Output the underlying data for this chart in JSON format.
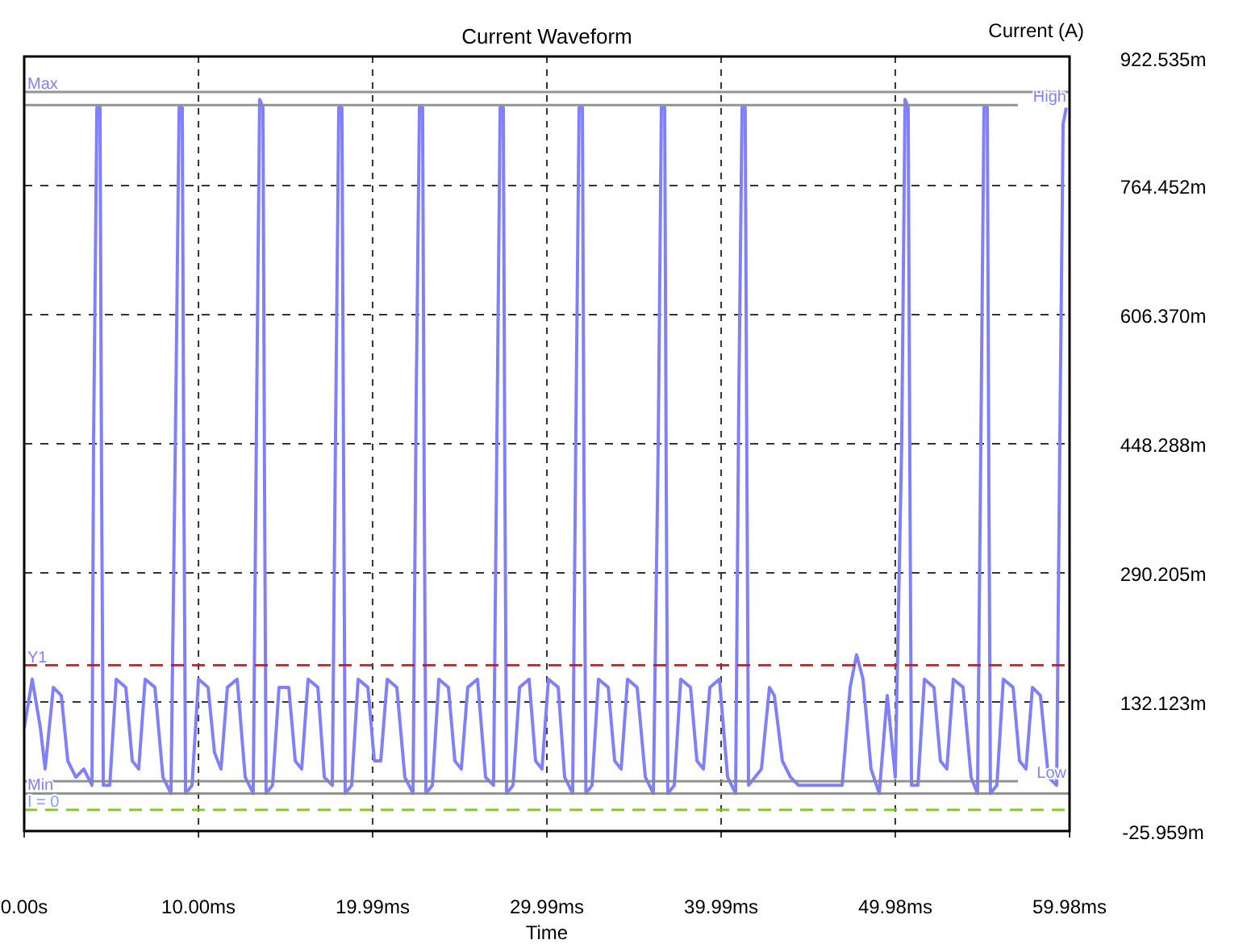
{
  "chart_data": {
    "type": "line",
    "title": "Current Waveform",
    "xlabel": "Time",
    "ylabel": "Current (A)",
    "xlim": [
      0,
      59.98
    ],
    "xticks": [
      {
        "value": 0,
        "label": "0.00s"
      },
      {
        "value": 10.0,
        "label": "10.00ms"
      },
      {
        "value": 19.99,
        "label": "19.99ms"
      },
      {
        "value": 29.99,
        "label": "29.99ms"
      },
      {
        "value": 39.99,
        "label": "39.99ms"
      },
      {
        "value": 49.98,
        "label": "49.98ms"
      },
      {
        "value": 59.98,
        "label": "59.98ms"
      }
    ],
    "ylim": [
      -25.959,
      922.535
    ],
    "yticks": [
      {
        "value": -25.959,
        "label": "-25.959m"
      },
      {
        "value": 132.123,
        "label": "132.123m"
      },
      {
        "value": 290.205,
        "label": "290.205m"
      },
      {
        "value": 448.288,
        "label": "448.288m"
      },
      {
        "value": 606.37,
        "label": "606.370m"
      },
      {
        "value": 764.452,
        "label": "764.452m"
      },
      {
        "value": 922.535,
        "label": "922.535m"
      }
    ],
    "grid": true,
    "ref_lines": [
      {
        "axis": "y",
        "value": 879,
        "label": "Max",
        "color": "#888888",
        "line_style": "solid"
      },
      {
        "axis": "y",
        "value": 863,
        "label": "High",
        "color": "#888888",
        "line_style": "solid"
      },
      {
        "axis": "y",
        "value": 177,
        "label": "Y1",
        "color": "#ff0000",
        "line_style": "dashed"
      },
      {
        "axis": "y",
        "value": 35,
        "label": "Low",
        "color": "#888888",
        "line_style": "solid"
      },
      {
        "axis": "y",
        "value": 20,
        "label": "Min",
        "color": "#888888",
        "line_style": "solid"
      },
      {
        "axis": "y",
        "value": 0,
        "label": "I = 0",
        "color": "#80c020",
        "line_style": "dashed"
      }
    ],
    "series": [
      {
        "color": "#8080ff",
        "x": [
          0.0,
          0.46,
          0.93,
          1.2,
          1.67,
          2.13,
          2.5,
          2.96,
          3.42,
          3.89,
          3.98,
          4.17,
          4.35,
          4.44,
          4.54,
          4.91,
          5.28,
          5.83,
          6.2,
          6.57,
          6.94,
          7.5,
          7.96,
          8.42,
          8.7,
          8.89,
          9.07,
          9.16,
          9.26,
          9.63,
          10.0,
          10.55,
          10.92,
          11.29,
          11.66,
          12.22,
          12.68,
          13.14,
          13.33,
          13.51,
          13.7,
          13.79,
          13.88,
          14.25,
          14.62,
          15.18,
          15.55,
          15.92,
          16.29,
          16.85,
          17.22,
          17.68,
          17.86,
          18.05,
          18.23,
          18.33,
          18.42,
          18.79,
          19.16,
          19.72,
          20.09,
          20.46,
          20.83,
          21.38,
          21.84,
          22.31,
          22.49,
          22.68,
          22.86,
          22.95,
          23.05,
          23.42,
          23.79,
          24.34,
          24.71,
          25.08,
          25.45,
          26.01,
          26.47,
          26.93,
          27.12,
          27.31,
          27.49,
          27.58,
          27.68,
          28.05,
          28.42,
          28.97,
          29.34,
          29.71,
          30.08,
          30.64,
          31.01,
          31.47,
          31.66,
          31.84,
          32.03,
          32.12,
          32.23,
          32.58,
          32.95,
          33.51,
          33.88,
          34.25,
          34.62,
          35.17,
          35.64,
          36.1,
          36.38,
          36.56,
          36.75,
          36.84,
          36.93,
          37.3,
          37.67,
          38.23,
          38.6,
          38.97,
          39.34,
          39.89,
          40.36,
          40.82,
          41.0,
          41.19,
          41.37,
          41.47,
          41.56,
          41.93,
          42.3,
          42.76,
          43.04,
          43.5,
          43.97,
          44.43,
          46.93,
          47.39,
          47.76,
          48.13,
          48.59,
          49.06,
          49.52,
          49.98,
          50.35,
          50.54,
          50.72,
          50.82,
          50.91,
          51.28,
          51.65,
          52.2,
          52.57,
          52.94,
          53.31,
          53.87,
          54.33,
          54.7,
          54.89,
          55.07,
          55.26,
          55.35,
          55.44,
          55.81,
          56.18,
          56.74,
          57.11,
          57.48,
          57.85,
          58.31,
          58.77,
          59.24,
          59.42,
          59.61,
          59.79
        ],
        "values": [
          100,
          160,
          100,
          50,
          150,
          140,
          60,
          40,
          50,
          30,
          450,
          860,
          860,
          400,
          30,
          30,
          160,
          150,
          60,
          50,
          160,
          150,
          40,
          20,
          500,
          860,
          860,
          400,
          20,
          30,
          160,
          150,
          70,
          50,
          150,
          160,
          40,
          20,
          480,
          870,
          860,
          400,
          20,
          30,
          150,
          150,
          60,
          50,
          160,
          150,
          40,
          30,
          450,
          860,
          860,
          400,
          20,
          30,
          160,
          150,
          60,
          60,
          160,
          150,
          40,
          20,
          500,
          860,
          860,
          400,
          20,
          30,
          160,
          150,
          60,
          50,
          150,
          160,
          40,
          30,
          450,
          860,
          860,
          400,
          20,
          30,
          150,
          160,
          60,
          50,
          160,
          150,
          40,
          20,
          480,
          860,
          860,
          400,
          20,
          30,
          160,
          150,
          60,
          50,
          160,
          150,
          40,
          20,
          450,
          860,
          860,
          400,
          20,
          30,
          160,
          150,
          60,
          50,
          150,
          160,
          40,
          20,
          500,
          860,
          860,
          400,
          30,
          40,
          50,
          150,
          140,
          60,
          40,
          30,
          30,
          150,
          190,
          160,
          50,
          20,
          140,
          40,
          450,
          870,
          860,
          400,
          30,
          30,
          160,
          150,
          60,
          50,
          160,
          150,
          40,
          20,
          450,
          860,
          860,
          400,
          20,
          30,
          160,
          150,
          60,
          50,
          150,
          140,
          40,
          30,
          450,
          840,
          860
        ]
      }
    ]
  }
}
